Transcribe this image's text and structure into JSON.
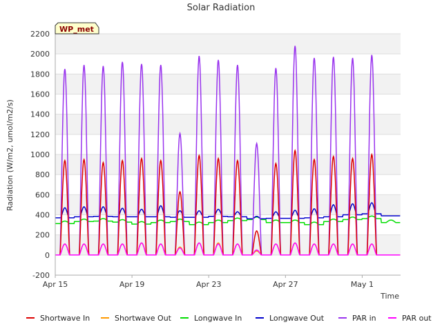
{
  "chart_data": {
    "type": "line",
    "title": "Solar Radiation",
    "xlabel": "Time",
    "ylabel": "Radiation (W/m2, umol/m2/s)",
    "ylim": [
      -200,
      2200
    ],
    "xlim": [
      "2024-04-15",
      "2024-05-03"
    ],
    "yticks": [
      -200,
      0,
      200,
      400,
      600,
      800,
      1000,
      1200,
      1400,
      1600,
      1800,
      2000,
      2200
    ],
    "xticks": [
      {
        "date": "2024-04-15",
        "label": "Apr 15"
      },
      {
        "date": "2024-04-19",
        "label": "Apr 19"
      },
      {
        "date": "2024-04-23",
        "label": "Apr 23"
      },
      {
        "date": "2024-04-27",
        "label": "Apr 27"
      },
      {
        "date": "2024-05-01",
        "label": "May 1"
      }
    ],
    "grid": "horizontal",
    "legend": "bottom",
    "site_badge": "WP_met",
    "days": [
      "2024-04-15",
      "2024-04-16",
      "2024-04-17",
      "2024-04-18",
      "2024-04-19",
      "2024-04-20",
      "2024-04-21",
      "2024-04-22",
      "2024-04-23",
      "2024-04-24",
      "2024-04-25",
      "2024-04-26",
      "2024-04-27",
      "2024-04-28",
      "2024-04-29",
      "2024-04-30",
      "2024-05-01",
      "2024-05-02"
    ],
    "series": [
      {
        "name": "Shortwave In",
        "color": "#dd0000",
        "kind": "daily_peak",
        "daily_max": [
          940,
          950,
          920,
          940,
          960,
          940,
          630,
          990,
          960,
          940,
          240,
          910,
          1040,
          950,
          980,
          960,
          1000,
          0
        ]
      },
      {
        "name": "Shortwave Out",
        "color": "#ff9900",
        "kind": "daily_peak",
        "daily_max": [
          110,
          110,
          110,
          110,
          120,
          110,
          80,
          120,
          120,
          110,
          40,
          110,
          120,
          110,
          110,
          110,
          110,
          0
        ]
      },
      {
        "name": "Longwave In",
        "color": "#00dd00",
        "kind": "daily_level",
        "daily_mean": [
          320,
          340,
          345,
          335,
          315,
          330,
          340,
          310,
          330,
          350,
          360,
          330,
          330,
          310,
          340,
          360,
          370,
          330
        ]
      },
      {
        "name": "Longwave Out",
        "color": "#0000cc",
        "kind": "daily_level",
        "daily_mean": [
          370,
          380,
          385,
          380,
          380,
          380,
          375,
          375,
          385,
          380,
          360,
          365,
          365,
          370,
          380,
          400,
          410,
          390
        ],
        "daily_max": [
          470,
          480,
          480,
          465,
          455,
          490,
          440,
          440,
          455,
          430,
          385,
          430,
          445,
          460,
          500,
          510,
          520,
          390
        ]
      },
      {
        "name": "PAR in",
        "color": "#9933ee",
        "kind": "daily_peak",
        "daily_max": [
          1850,
          1890,
          1880,
          1920,
          1900,
          1890,
          1210,
          1980,
          1940,
          1890,
          1110,
          1860,
          2080,
          1960,
          1970,
          1960,
          1990,
          0
        ]
      },
      {
        "name": "PAR out",
        "color": "#ff00ff",
        "kind": "daily_peak",
        "daily_max": [
          110,
          110,
          110,
          110,
          120,
          110,
          70,
          120,
          110,
          110,
          50,
          110,
          120,
          110,
          110,
          110,
          110,
          0
        ]
      }
    ]
  }
}
